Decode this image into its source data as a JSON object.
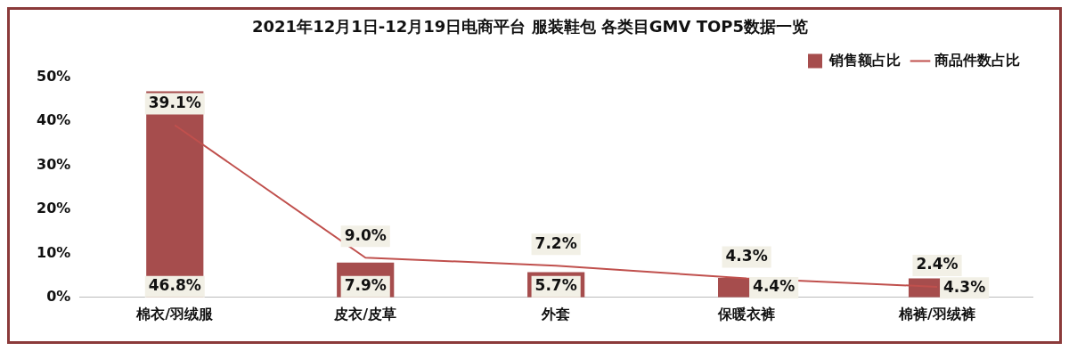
{
  "chart_data": {
    "type": "bar",
    "title": "2021年12月1日-12月19日电商平台 服装鞋包 各类目GMV TOP5数据一览",
    "categories": [
      "棉衣/羽绒服",
      "皮衣/皮草",
      "外套",
      "保暖衣裤",
      "棉裤/羽绒裤"
    ],
    "series": [
      {
        "name": "销售额占比",
        "color": "#a64d4d",
        "values": [
          46.8,
          7.9,
          5.7,
          4.4,
          4.3
        ],
        "value_labels": [
          "46.8%",
          "7.9%",
          "5.7%",
          "4.4%",
          "4.3%"
        ]
      },
      {
        "name": "商品件数占比",
        "type": "line",
        "color": "#c0504d",
        "values": [
          39.1,
          9.0,
          7.2,
          4.3,
          2.4
        ],
        "value_labels": [
          "39.1%",
          "9.0%",
          "7.2%",
          "4.3%",
          "2.4%"
        ]
      }
    ],
    "ylim": [
      0,
      50
    ],
    "yticks": [
      {
        "value": 0,
        "label": "0%"
      },
      {
        "value": 10,
        "label": "10%"
      },
      {
        "value": 20,
        "label": "20%"
      },
      {
        "value": 30,
        "label": "30%"
      },
      {
        "value": 40,
        "label": "40%"
      },
      {
        "value": 50,
        "label": "50%"
      }
    ],
    "grid": false,
    "legend": "top right",
    "marker": "none",
    "line_style": "solid"
  }
}
